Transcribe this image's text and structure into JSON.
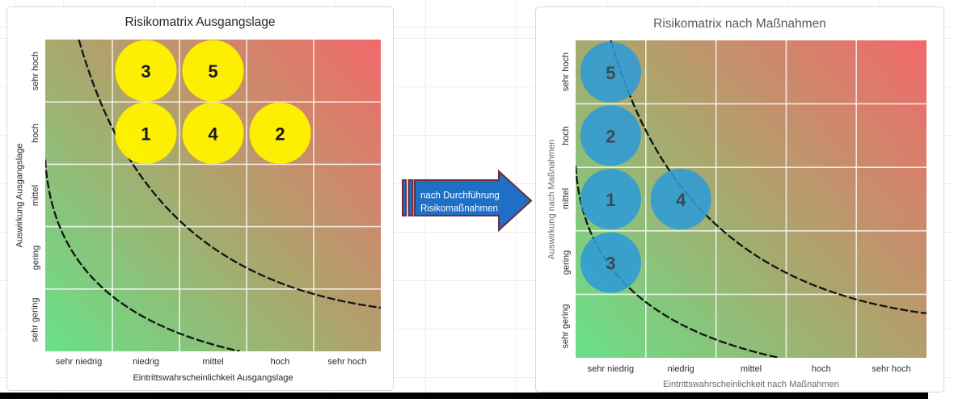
{
  "chart_data": [
    {
      "type": "scatter",
      "title": "Risikomatrix Ausgangslage",
      "xlabel": "Eintrittswahrscheinlichkeit Ausgangslage",
      "ylabel": "Auswirkung Ausgangslage",
      "x_categories": [
        "sehr niedrig",
        "niedrig",
        "mittel",
        "hoch",
        "sehr hoch"
      ],
      "y_categories": [
        "sehr gering",
        "gering",
        "mittel",
        "hoch",
        "sehr hoch"
      ],
      "points": [
        {
          "label": "1",
          "x": "niedrig",
          "y": "hoch"
        },
        {
          "label": "2",
          "x": "hoch",
          "y": "hoch"
        },
        {
          "label": "3",
          "x": "niedrig",
          "y": "sehr hoch"
        },
        {
          "label": "4",
          "x": "mittel",
          "y": "hoch"
        },
        {
          "label": "5",
          "x": "mittel",
          "y": "sehr hoch"
        }
      ],
      "marker_color": "#FFF200",
      "label_color": "#1a1a1a",
      "background_gradient": [
        "#68E189",
        "#ACA56C",
        "#F3686C"
      ],
      "annotations": [
        "two dashed black iso-risk curves"
      ],
      "grid": true,
      "legend": false
    },
    {
      "type": "scatter",
      "title": "Risikomatrix nach Maßnahmen",
      "xlabel": "Eintrittswahrscheinlichkeit nach Maßnahmen",
      "ylabel": "Auswirkung nach Maßnahmen",
      "x_categories": [
        "sehr niedrig",
        "niedrig",
        "mittel",
        "hoch",
        "sehr hoch"
      ],
      "y_categories": [
        "sehr gering",
        "gering",
        "mittel",
        "hoch",
        "sehr hoch"
      ],
      "points": [
        {
          "label": "1",
          "x": "sehr niedrig",
          "y": "mittel"
        },
        {
          "label": "2",
          "x": "sehr niedrig",
          "y": "hoch"
        },
        {
          "label": "3",
          "x": "sehr niedrig",
          "y": "gering"
        },
        {
          "label": "4",
          "x": "niedrig",
          "y": "mittel"
        },
        {
          "label": "5",
          "x": "sehr niedrig",
          "y": "sehr hoch"
        }
      ],
      "marker_color": "#2E9BD6",
      "label_color": "#3D4954",
      "background_gradient": [
        "#68E189",
        "#ACA56C",
        "#F3686C"
      ],
      "annotations": [
        "two dashed black iso-risk curves"
      ],
      "grid": true,
      "legend": false
    }
  ],
  "arrow": {
    "lines": [
      "nach Durchführung",
      "Risikomaßnahmen"
    ],
    "fill": "#1E6FC5",
    "border": "#6F2C3E",
    "text_color": "#FFFFFF"
  }
}
